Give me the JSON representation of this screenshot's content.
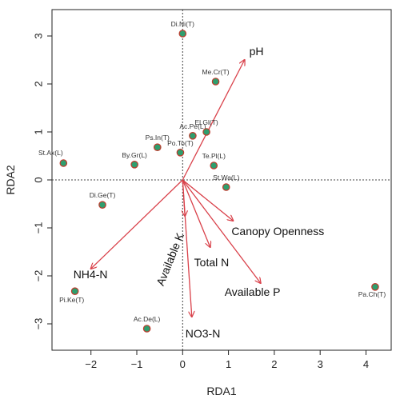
{
  "chart_data": {
    "type": "scatter",
    "xlabel": "RDA1",
    "ylabel": "RDA2",
    "xlim": [
      -2.85,
      4.55
    ],
    "ylim": [
      -3.55,
      3.55
    ],
    "x_ticks": [
      -2,
      -1,
      0,
      1,
      2,
      3,
      4
    ],
    "y_ticks": [
      -3,
      -2,
      -1,
      0,
      1,
      2,
      3
    ],
    "reference_lines": {
      "x": 0,
      "y": 0,
      "style": "dotted"
    },
    "colors": {
      "point_fill": "#2e9e6e",
      "point_stroke": "#c0392b",
      "arrow": "#d9414a"
    },
    "species": [
      {
        "label": "Di.Ni(T)",
        "x": 0.0,
        "y": 3.05
      },
      {
        "label": "Me.Cr(T)",
        "x": 0.72,
        "y": 2.05
      },
      {
        "label": "Ac.Pe(L)",
        "x": 0.22,
        "y": 0.92
      },
      {
        "label": "El.Gl(T)",
        "x": 0.52,
        "y": 1.0
      },
      {
        "label": "Ps.In(T)",
        "x": -0.55,
        "y": 0.68
      },
      {
        "label": "Po.To(T)",
        "x": -0.05,
        "y": 0.57
      },
      {
        "label": "Te.Pl(L)",
        "x": 0.68,
        "y": 0.3
      },
      {
        "label": "St.Wa(L)",
        "x": 0.95,
        "y": -0.15
      },
      {
        "label": "St.Ax(L)",
        "x": -2.6,
        "y": 0.35
      },
      {
        "label": "By.Gr(L)",
        "x": -1.05,
        "y": 0.32
      },
      {
        "label": "Di.Ge(T)",
        "x": -1.75,
        "y": -0.52
      },
      {
        "label": "Pi.Ke(T)",
        "x": -2.35,
        "y": -2.32
      },
      {
        "label": "Ac.De(L)",
        "x": -0.78,
        "y": -3.1
      },
      {
        "label": "Pa.Ch(T)",
        "x": 4.2,
        "y": -2.23
      }
    ],
    "arrows": [
      {
        "label": "pH",
        "x": 1.35,
        "y": 2.5
      },
      {
        "label": "Canopy Openness",
        "x": 1.1,
        "y": -0.85
      },
      {
        "label": "Available K",
        "x": 0.05,
        "y": -0.75
      },
      {
        "label": "Total N",
        "x": 0.6,
        "y": -1.4
      },
      {
        "label": "Available P",
        "x": 1.7,
        "y": -2.15
      },
      {
        "label": "NO3-N",
        "x": 0.2,
        "y": -2.85
      },
      {
        "label": "NH4-N",
        "x": -2.0,
        "y": -1.85
      }
    ]
  }
}
